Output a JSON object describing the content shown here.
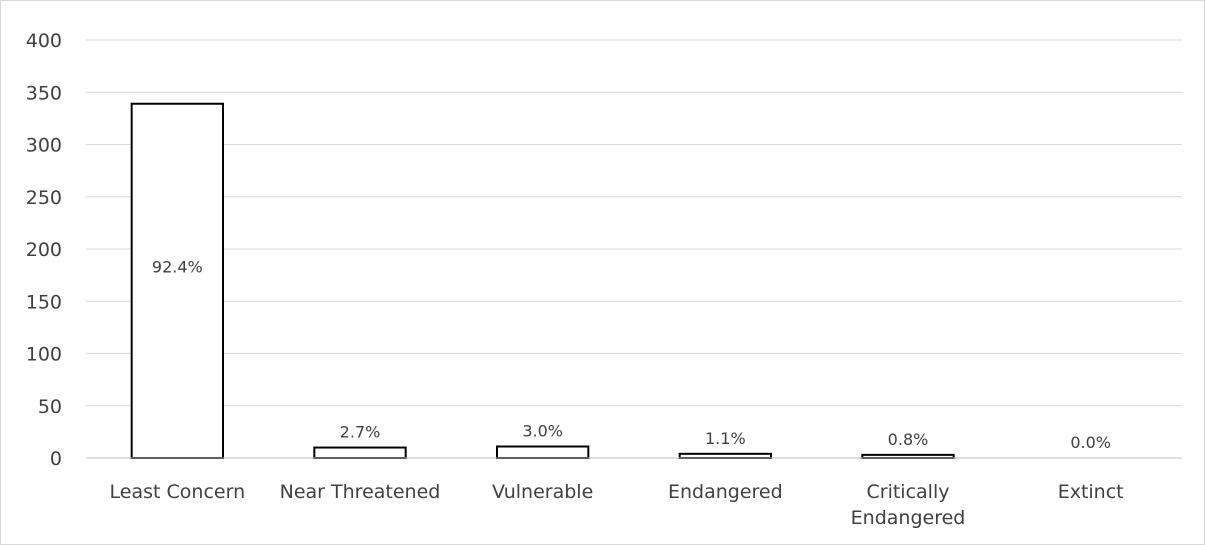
{
  "chart_data": {
    "type": "bar",
    "categories": [
      [
        "Least Concern"
      ],
      [
        "Near Threatened"
      ],
      [
        "Vulnerable"
      ],
      [
        "Endangered"
      ],
      [
        "Critically",
        "Endangered"
      ],
      [
        "Extinct"
      ]
    ],
    "values": [
      339,
      10,
      11,
      4,
      3,
      0
    ],
    "data_labels": [
      "92.4%",
      "2.7%",
      "3.0%",
      "1.1%",
      "0.8%",
      "0.0%"
    ],
    "title": "",
    "xlabel": "",
    "ylabel": "",
    "ylim": [
      0,
      400
    ],
    "yticks": [
      0,
      50,
      100,
      150,
      200,
      250,
      300,
      350,
      400
    ],
    "grid": true,
    "legend": "none",
    "colors": {
      "bar_fill": "#ffffff",
      "bar_stroke": "#000000",
      "grid": "#d9d9d9",
      "axis": "#bfbfbf",
      "text": "#404040"
    }
  }
}
